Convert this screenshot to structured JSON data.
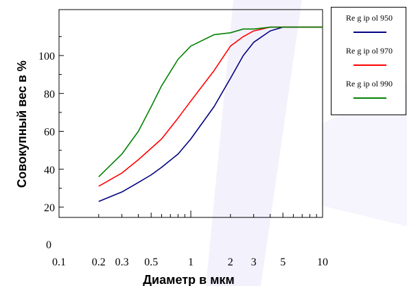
{
  "chart_data": {
    "type": "line",
    "title": "",
    "xlabel": "Диаметр в мкм",
    "ylabel": "Совокупный вес в %",
    "x_scale": "log",
    "xlim": [
      0.1,
      10
    ],
    "ylim": [
      0,
      115
    ],
    "x_tick_labels": [
      "0.1",
      "0.2",
      "0.3",
      "0.5",
      "1",
      "2",
      "3",
      "5",
      "10"
    ],
    "x_tick_values": [
      0.1,
      0.2,
      0.3,
      0.5,
      1,
      2,
      3,
      5,
      10
    ],
    "y_tick_labels": [
      "0",
      "20",
      "40",
      "60",
      "80",
      "100"
    ],
    "y_tick_values": [
      0,
      20,
      40,
      60,
      80,
      100
    ],
    "grid": false,
    "legend_position": "top-right",
    "series": [
      {
        "name": "Re g ip ol 950",
        "color": "#000080",
        "x": [
          0.2,
          0.3,
          0.4,
          0.5,
          0.6,
          0.8,
          1.0,
          1.5,
          2.0,
          2.5,
          3.0,
          4.0,
          5.0,
          7.0,
          10.0
        ],
        "y": [
          23,
          28,
          33,
          37,
          41,
          48,
          56,
          73,
          88,
          100,
          107,
          113,
          115,
          115,
          115
        ]
      },
      {
        "name": "Re g ip ol 970",
        "color": "#ff0000",
        "x": [
          0.2,
          0.3,
          0.4,
          0.6,
          0.8,
          1.0,
          1.5,
          2.0,
          2.5,
          3.0,
          4.0,
          5.0,
          7.0,
          10.0
        ],
        "y": [
          31,
          38,
          45,
          56,
          67,
          76,
          92,
          105,
          110,
          113,
          115,
          115,
          115,
          115
        ]
      },
      {
        "name": "Re g ip ol 990",
        "color": "#008000",
        "x": [
          0.2,
          0.3,
          0.4,
          0.5,
          0.6,
          0.8,
          1.0,
          1.5,
          2.0,
          2.5,
          3.0,
          4.0,
          5.0,
          7.0,
          10.0
        ],
        "y": [
          36,
          48,
          60,
          73,
          84,
          98,
          105,
          111,
          112,
          114,
          114,
          115,
          115,
          115,
          115
        ]
      }
    ]
  }
}
